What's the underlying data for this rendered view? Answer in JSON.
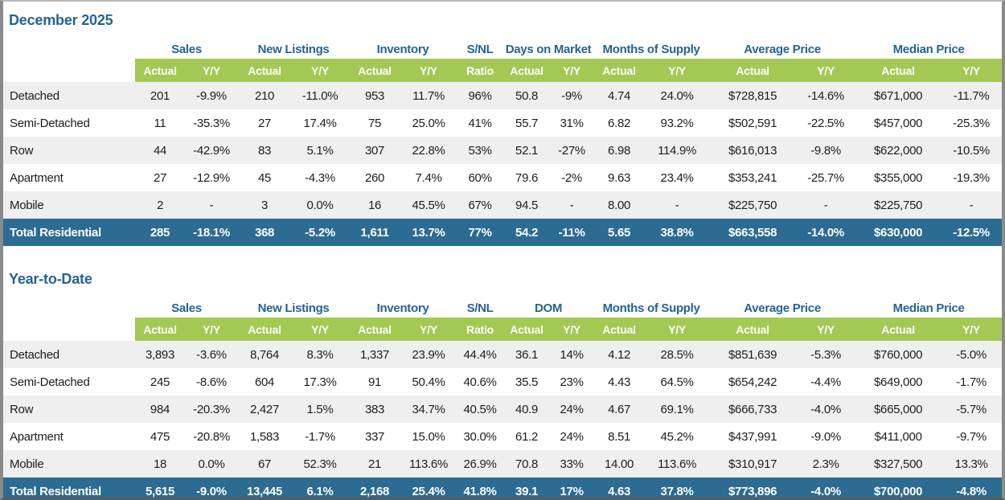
{
  "colors": {
    "header_blue": "#266391",
    "band_green": "#A4C854",
    "total_row_blue": "#2C6B92",
    "alt_row_gray": "#EFEFEF"
  },
  "sections": [
    {
      "title": "December 2025",
      "groups": [
        {
          "label": "Sales",
          "span": 2
        },
        {
          "label": "New Listings",
          "span": 2
        },
        {
          "label": "Inventory",
          "span": 2
        },
        {
          "label": "S/NL",
          "span": 1
        },
        {
          "label": "Days on Market",
          "span": 2
        },
        {
          "label": "Months of Supply",
          "span": 2
        },
        {
          "label": "Average Price",
          "span": 2
        },
        {
          "label": "Median Price",
          "span": 2
        }
      ],
      "subheaders": [
        "Actual",
        "Y/Y",
        "Actual",
        "Y/Y",
        "Actual",
        "Y/Y",
        "Ratio",
        "Actual",
        "Y/Y",
        "Actual",
        "Y/Y",
        "Actual",
        "Y/Y",
        "Actual",
        "Y/Y"
      ],
      "rows": [
        {
          "label": "Detached",
          "total": false,
          "values": [
            "201",
            "-9.9%",
            "210",
            "-11.0%",
            "953",
            "11.7%",
            "96%",
            "50.8",
            "-9%",
            "4.74",
            "24.0%",
            "$728,815",
            "-14.6%",
            "$671,000",
            "-11.7%"
          ]
        },
        {
          "label": "Semi-Detached",
          "total": false,
          "values": [
            "11",
            "-35.3%",
            "27",
            "17.4%",
            "75",
            "25.0%",
            "41%",
            "55.7",
            "31%",
            "6.82",
            "93.2%",
            "$502,591",
            "-22.5%",
            "$457,000",
            "-25.3%"
          ]
        },
        {
          "label": "Row",
          "total": false,
          "values": [
            "44",
            "-42.9%",
            "83",
            "5.1%",
            "307",
            "22.8%",
            "53%",
            "52.1",
            "-27%",
            "6.98",
            "114.9%",
            "$616,013",
            "-9.8%",
            "$622,000",
            "-10.5%"
          ]
        },
        {
          "label": "Apartment",
          "total": false,
          "values": [
            "27",
            "-12.9%",
            "45",
            "-4.3%",
            "260",
            "7.4%",
            "60%",
            "79.6",
            "-2%",
            "9.63",
            "23.4%",
            "$353,241",
            "-25.7%",
            "$355,000",
            "-19.3%"
          ]
        },
        {
          "label": "Mobile",
          "total": false,
          "values": [
            "2",
            "-",
            "3",
            "0.0%",
            "16",
            "45.5%",
            "67%",
            "94.5",
            "-",
            "8.00",
            "-",
            "$225,750",
            "-",
            "$225,750",
            "-"
          ]
        },
        {
          "label": "Total Residential",
          "total": true,
          "values": [
            "285",
            "-18.1%",
            "368",
            "-5.2%",
            "1,611",
            "13.7%",
            "77%",
            "54.2",
            "-11%",
            "5.65",
            "38.8%",
            "$663,558",
            "-14.0%",
            "$630,000",
            "-12.5%"
          ]
        }
      ]
    },
    {
      "title": "Year-to-Date",
      "groups": [
        {
          "label": "Sales",
          "span": 2
        },
        {
          "label": "New Listings",
          "span": 2
        },
        {
          "label": "Inventory",
          "span": 2
        },
        {
          "label": "S/NL",
          "span": 1
        },
        {
          "label": "DOM",
          "span": 2
        },
        {
          "label": "Months of Supply",
          "span": 2
        },
        {
          "label": "Average Price",
          "span": 2
        },
        {
          "label": "Median Price",
          "span": 2
        }
      ],
      "subheaders": [
        "Actual",
        "Y/Y",
        "Actual",
        "Y/Y",
        "Actual",
        "Y/Y",
        "Ratio",
        "Actual",
        "Y/Y",
        "Actual",
        "Y/Y",
        "Actual",
        "Y/Y",
        "Actual",
        "Y/Y"
      ],
      "rows": [
        {
          "label": "Detached",
          "total": false,
          "values": [
            "3,893",
            "-3.6%",
            "8,764",
            "8.3%",
            "1,337",
            "23.9%",
            "44.4%",
            "36.1",
            "14%",
            "4.12",
            "28.5%",
            "$851,639",
            "-5.3%",
            "$760,000",
            "-5.0%"
          ]
        },
        {
          "label": "Semi-Detached",
          "total": false,
          "values": [
            "245",
            "-8.6%",
            "604",
            "17.3%",
            "91",
            "50.4%",
            "40.6%",
            "35.5",
            "23%",
            "4.43",
            "64.5%",
            "$654,242",
            "-4.4%",
            "$649,000",
            "-1.7%"
          ]
        },
        {
          "label": "Row",
          "total": false,
          "values": [
            "984",
            "-20.3%",
            "2,427",
            "1.5%",
            "383",
            "34.7%",
            "40.5%",
            "40.9",
            "24%",
            "4.67",
            "69.1%",
            "$666,733",
            "-4.0%",
            "$665,000",
            "-5.7%"
          ]
        },
        {
          "label": "Apartment",
          "total": false,
          "values": [
            "475",
            "-20.8%",
            "1,583",
            "-1.7%",
            "337",
            "15.0%",
            "30.0%",
            "61.2",
            "24%",
            "8.51",
            "45.2%",
            "$437,991",
            "-9.0%",
            "$411,000",
            "-9.7%"
          ]
        },
        {
          "label": "Mobile",
          "total": false,
          "values": [
            "18",
            "0.0%",
            "67",
            "52.3%",
            "21",
            "113.6%",
            "26.9%",
            "70.8",
            "33%",
            "14.00",
            "113.6%",
            "$310,917",
            "2.3%",
            "$327,500",
            "13.3%"
          ]
        },
        {
          "label": "Total Residential",
          "total": true,
          "values": [
            "5,615",
            "-9.0%",
            "13,445",
            "6.1%",
            "2,168",
            "25.4%",
            "41.8%",
            "39.1",
            "17%",
            "4.63",
            "37.8%",
            "$773,896",
            "-4.0%",
            "$700,000",
            "-4.8%"
          ]
        }
      ]
    }
  ]
}
